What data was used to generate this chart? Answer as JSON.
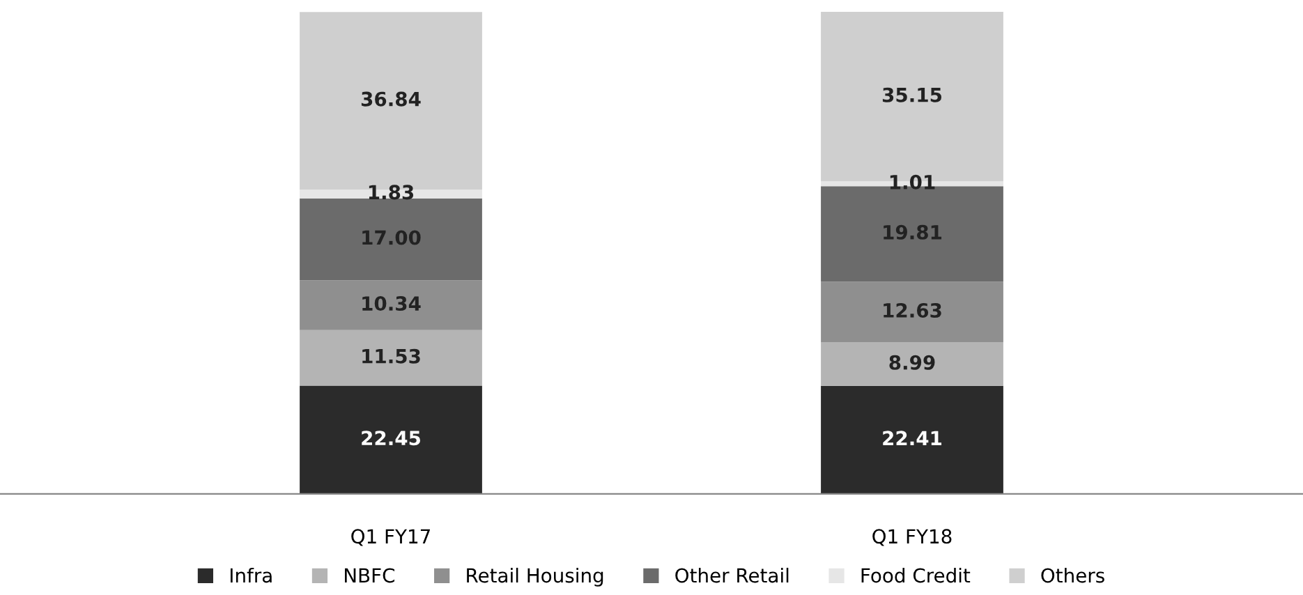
{
  "chart_data": {
    "type": "bar",
    "stacked": true,
    "categories": [
      "Q1 FY17",
      "Q1 FY18"
    ],
    "series": [
      {
        "name": "Infra",
        "color": "#2b2b2b",
        "values": [
          22.45,
          22.41
        ],
        "value_labels": [
          "22.45",
          "22.41"
        ]
      },
      {
        "name": "NBFC",
        "color": "#b4b4b4",
        "values": [
          11.53,
          8.99
        ],
        "value_labels": [
          "11.53",
          "8.99"
        ]
      },
      {
        "name": "Retail Housing",
        "color": "#8f8f8f",
        "values": [
          10.34,
          12.63
        ],
        "value_labels": [
          "10.34",
          "12.63"
        ]
      },
      {
        "name": "Other Retail",
        "color": "#6b6b6b",
        "values": [
          17.0,
          19.81
        ],
        "value_labels": [
          "17.00",
          "19.81"
        ]
      },
      {
        "name": "Food Credit",
        "color": "#e6e6e6",
        "values": [
          1.83,
          1.01
        ],
        "value_labels": [
          "1.83",
          "1.01"
        ]
      },
      {
        "name": "Others",
        "color": "#cfcfcf",
        "values": [
          36.84,
          35.15
        ],
        "value_labels": [
          "36.84",
          "35.15"
        ]
      }
    ],
    "legend": "bottom"
  }
}
